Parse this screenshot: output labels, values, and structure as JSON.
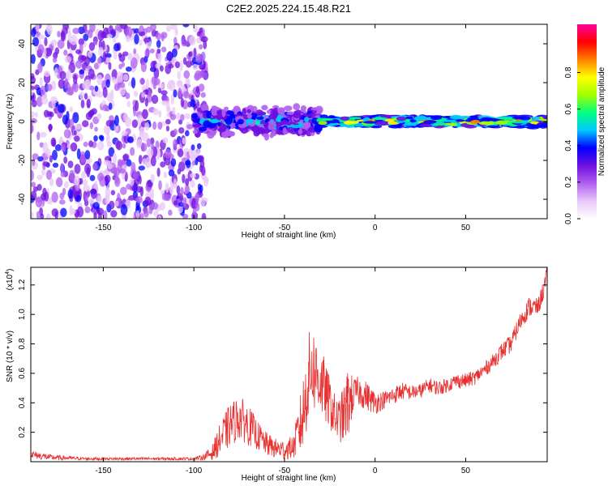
{
  "title": "C2E2.2025.224.15.48.R21",
  "chart_data": [
    {
      "type": "heatmap",
      "xlabel": "Height of straight line (km)",
      "ylabel": "Frequency (Hz)",
      "xlim": [
        -190,
        95
      ],
      "ylim": [
        -50,
        50
      ],
      "x_ticks": [
        -150,
        -100,
        -50,
        0,
        50
      ],
      "y_ticks": [
        -40,
        -20,
        0,
        20,
        40
      ],
      "colorbar": {
        "label": "Normalized spectral amplitude",
        "range": [
          0,
          1
        ],
        "ticks": [
          "0.0",
          "0.2",
          "0.4",
          "0.6",
          "0.8"
        ],
        "colors": [
          "#ffffff",
          "#e8c8f8",
          "#b060f0",
          "#7010e0",
          "#0000ff",
          "#00c8ff",
          "#00ff80",
          "#a0ff00",
          "#ffff00",
          "#ff8000",
          "#ff0000",
          "#ff00a0"
        ]
      },
      "regions": [
        {
          "x": [
            -190,
            -93
          ],
          "freq_spread_hz": 50,
          "amplitude": "0.05-0.35 (noise)"
        },
        {
          "x": [
            -100,
            -30
          ],
          "freq_spread_hz": 8,
          "amplitude": "0.2-0.6"
        },
        {
          "x": [
            -30,
            95
          ],
          "freq_spread_hz": 3,
          "amplitude": "0.4-0.9"
        }
      ]
    },
    {
      "type": "line",
      "xlabel": "Height of straight line (km)",
      "ylabel": "SNR (10 * v/v)",
      "y_multiplier": "(x10",
      "y_exponent": "4",
      "xlim": [
        -190,
        95
      ],
      "ylim": [
        0,
        1.32
      ],
      "x_ticks": [
        -150,
        -100,
        -50,
        0,
        50
      ],
      "y_ticks": [
        "0.2",
        "0.4",
        "0.6",
        "0.8",
        "1.0",
        "1.2"
      ],
      "line_color": "#e83030",
      "series": [
        {
          "x": [
            -190,
            -180,
            -160,
            -140,
            -120,
            -100,
            -95,
            -90,
            -85,
            -80,
            -75,
            -70,
            -65,
            -60,
            -55,
            -50,
            -45,
            -40,
            -37,
            -35,
            -33,
            -30,
            -27,
            -25,
            -22,
            -20,
            -17,
            -15,
            -12,
            -10,
            -5,
            0,
            5,
            10,
            15,
            20,
            25,
            30,
            35,
            40,
            45,
            50,
            55,
            60,
            65,
            70,
            75,
            80,
            85,
            90,
            95
          ],
          "y": [
            0.05,
            0.03,
            0.02,
            0.02,
            0.02,
            0.02,
            0.03,
            0.06,
            0.16,
            0.25,
            0.3,
            0.25,
            0.18,
            0.12,
            0.09,
            0.08,
            0.1,
            0.3,
            0.55,
            0.65,
            0.6,
            0.55,
            0.45,
            0.4,
            0.3,
            0.28,
            0.32,
            0.4,
            0.45,
            0.48,
            0.45,
            0.4,
            0.42,
            0.45,
            0.48,
            0.47,
            0.48,
            0.52,
            0.5,
            0.52,
            0.55,
            0.55,
            0.57,
            0.62,
            0.68,
            0.75,
            0.8,
            0.95,
            1.05,
            1.05,
            1.25
          ],
          "amplitude": [
            0.03,
            0.02,
            0.01,
            0.01,
            0.01,
            0.01,
            0.02,
            0.05,
            0.12,
            0.15,
            0.15,
            0.14,
            0.1,
            0.08,
            0.07,
            0.07,
            0.08,
            0.25,
            0.3,
            0.3,
            0.28,
            0.25,
            0.2,
            0.18,
            0.15,
            0.15,
            0.2,
            0.25,
            0.12,
            0.1,
            0.1,
            0.08,
            0.06,
            0.06,
            0.06,
            0.05,
            0.05,
            0.05,
            0.05,
            0.05,
            0.05,
            0.05,
            0.05,
            0.05,
            0.05,
            0.06,
            0.06,
            0.06,
            0.07,
            0.06,
            0.08
          ]
        }
      ]
    }
  ]
}
